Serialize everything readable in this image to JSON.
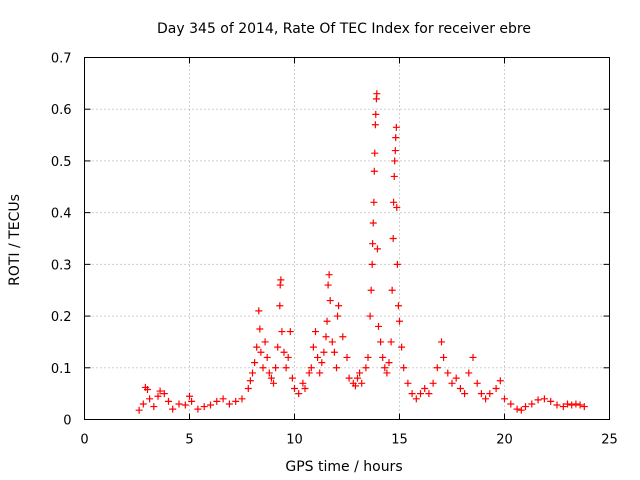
{
  "chart_data": {
    "type": "scatter",
    "title": "Day 345 of 2014, Rate Of TEC Index for receiver ebre",
    "xlabel": "GPS time / hours",
    "ylabel": "ROTI / TECUs",
    "xlim": [
      0,
      25
    ],
    "ylim": [
      0,
      0.7
    ],
    "xticks": [
      0,
      5,
      10,
      15,
      20,
      25
    ],
    "xtick_labels": [
      "0",
      "5",
      "10",
      "15",
      "20",
      "25"
    ],
    "yticks": [
      0,
      0.1,
      0.2,
      0.3,
      0.4,
      0.5,
      0.6,
      0.7
    ],
    "ytick_labels": [
      "0",
      "0.1",
      "0.2",
      "0.3",
      "0.4",
      "0.5",
      "0.6",
      "0.7"
    ],
    "grid": true,
    "marker": "+",
    "color": "#ff0000",
    "series": [
      {
        "name": "ROTI",
        "points": [
          [
            2.6,
            0.018
          ],
          [
            2.8,
            0.03
          ],
          [
            2.9,
            0.062
          ],
          [
            3.0,
            0.058
          ],
          [
            3.1,
            0.04
          ],
          [
            3.3,
            0.025
          ],
          [
            3.5,
            0.045
          ],
          [
            3.6,
            0.055
          ],
          [
            3.8,
            0.05
          ],
          [
            4.0,
            0.035
          ],
          [
            4.2,
            0.02
          ],
          [
            4.5,
            0.03
          ],
          [
            4.8,
            0.028
          ],
          [
            5.0,
            0.045
          ],
          [
            5.1,
            0.035
          ],
          [
            5.4,
            0.02
          ],
          [
            5.7,
            0.025
          ],
          [
            6.0,
            0.028
          ],
          [
            6.3,
            0.035
          ],
          [
            6.6,
            0.04
          ],
          [
            6.9,
            0.03
          ],
          [
            7.2,
            0.035
          ],
          [
            7.5,
            0.04
          ],
          [
            7.8,
            0.06
          ],
          [
            7.9,
            0.075
          ],
          [
            8.0,
            0.09
          ],
          [
            8.1,
            0.11
          ],
          [
            8.2,
            0.14
          ],
          [
            8.3,
            0.21
          ],
          [
            8.35,
            0.175
          ],
          [
            8.4,
            0.13
          ],
          [
            8.5,
            0.1
          ],
          [
            8.6,
            0.15
          ],
          [
            8.7,
            0.12
          ],
          [
            8.8,
            0.09
          ],
          [
            8.9,
            0.08
          ],
          [
            9.0,
            0.07
          ],
          [
            9.1,
            0.1
          ],
          [
            9.2,
            0.14
          ],
          [
            9.3,
            0.22
          ],
          [
            9.32,
            0.26
          ],
          [
            9.35,
            0.27
          ],
          [
            9.4,
            0.17
          ],
          [
            9.5,
            0.13
          ],
          [
            9.6,
            0.1
          ],
          [
            9.7,
            0.12
          ],
          [
            9.8,
            0.17
          ],
          [
            9.9,
            0.08
          ],
          [
            10.0,
            0.06
          ],
          [
            10.2,
            0.05
          ],
          [
            10.4,
            0.07
          ],
          [
            10.5,
            0.06
          ],
          [
            10.7,
            0.09
          ],
          [
            10.8,
            0.1
          ],
          [
            10.9,
            0.14
          ],
          [
            11.0,
            0.17
          ],
          [
            11.1,
            0.12
          ],
          [
            11.2,
            0.09
          ],
          [
            11.3,
            0.11
          ],
          [
            11.4,
            0.13
          ],
          [
            11.5,
            0.16
          ],
          [
            11.55,
            0.19
          ],
          [
            11.6,
            0.26
          ],
          [
            11.65,
            0.28
          ],
          [
            11.7,
            0.23
          ],
          [
            11.8,
            0.15
          ],
          [
            11.9,
            0.13
          ],
          [
            12.0,
            0.1
          ],
          [
            12.05,
            0.2
          ],
          [
            12.1,
            0.22
          ],
          [
            12.3,
            0.16
          ],
          [
            12.5,
            0.12
          ],
          [
            12.6,
            0.08
          ],
          [
            12.8,
            0.07
          ],
          [
            12.9,
            0.065
          ],
          [
            13.0,
            0.08
          ],
          [
            13.1,
            0.09
          ],
          [
            13.2,
            0.07
          ],
          [
            13.4,
            0.1
          ],
          [
            13.5,
            0.12
          ],
          [
            13.6,
            0.2
          ],
          [
            13.65,
            0.25
          ],
          [
            13.7,
            0.3
          ],
          [
            13.72,
            0.34
          ],
          [
            13.75,
            0.38
          ],
          [
            13.78,
            0.42
          ],
          [
            13.8,
            0.48
          ],
          [
            13.82,
            0.515
          ],
          [
            13.85,
            0.57
          ],
          [
            13.87,
            0.59
          ],
          [
            13.9,
            0.62
          ],
          [
            13.92,
            0.63
          ],
          [
            13.95,
            0.33
          ],
          [
            14.0,
            0.18
          ],
          [
            14.1,
            0.15
          ],
          [
            14.2,
            0.12
          ],
          [
            14.3,
            0.1
          ],
          [
            14.4,
            0.09
          ],
          [
            14.5,
            0.11
          ],
          [
            14.6,
            0.15
          ],
          [
            14.65,
            0.25
          ],
          [
            14.7,
            0.35
          ],
          [
            14.72,
            0.42
          ],
          [
            14.75,
            0.47
          ],
          [
            14.77,
            0.5
          ],
          [
            14.8,
            0.52
          ],
          [
            14.82,
            0.545
          ],
          [
            14.85,
            0.565
          ],
          [
            14.87,
            0.41
          ],
          [
            14.9,
            0.3
          ],
          [
            14.95,
            0.22
          ],
          [
            15.0,
            0.19
          ],
          [
            15.1,
            0.14
          ],
          [
            15.2,
            0.1
          ],
          [
            15.4,
            0.07
          ],
          [
            15.6,
            0.05
          ],
          [
            15.8,
            0.04
          ],
          [
            16.0,
            0.05
          ],
          [
            16.2,
            0.06
          ],
          [
            16.4,
            0.05
          ],
          [
            16.6,
            0.07
          ],
          [
            16.8,
            0.1
          ],
          [
            17.0,
            0.15
          ],
          [
            17.1,
            0.12
          ],
          [
            17.3,
            0.09
          ],
          [
            17.5,
            0.07
          ],
          [
            17.7,
            0.08
          ],
          [
            17.9,
            0.06
          ],
          [
            18.1,
            0.05
          ],
          [
            18.3,
            0.09
          ],
          [
            18.5,
            0.12
          ],
          [
            18.7,
            0.07
          ],
          [
            18.9,
            0.05
          ],
          [
            19.1,
            0.04
          ],
          [
            19.3,
            0.05
          ],
          [
            19.6,
            0.06
          ],
          [
            19.8,
            0.075
          ],
          [
            20.0,
            0.04
          ],
          [
            20.3,
            0.03
          ],
          [
            20.6,
            0.02
          ],
          [
            20.8,
            0.018
          ],
          [
            21.0,
            0.025
          ],
          [
            21.3,
            0.03
          ],
          [
            21.6,
            0.038
          ],
          [
            21.9,
            0.04
          ],
          [
            22.2,
            0.035
          ],
          [
            22.5,
            0.028
          ],
          [
            22.8,
            0.025
          ],
          [
            23.0,
            0.03
          ],
          [
            23.2,
            0.028
          ],
          [
            23.4,
            0.03
          ],
          [
            23.6,
            0.028
          ],
          [
            23.8,
            0.025
          ]
        ]
      }
    ]
  }
}
